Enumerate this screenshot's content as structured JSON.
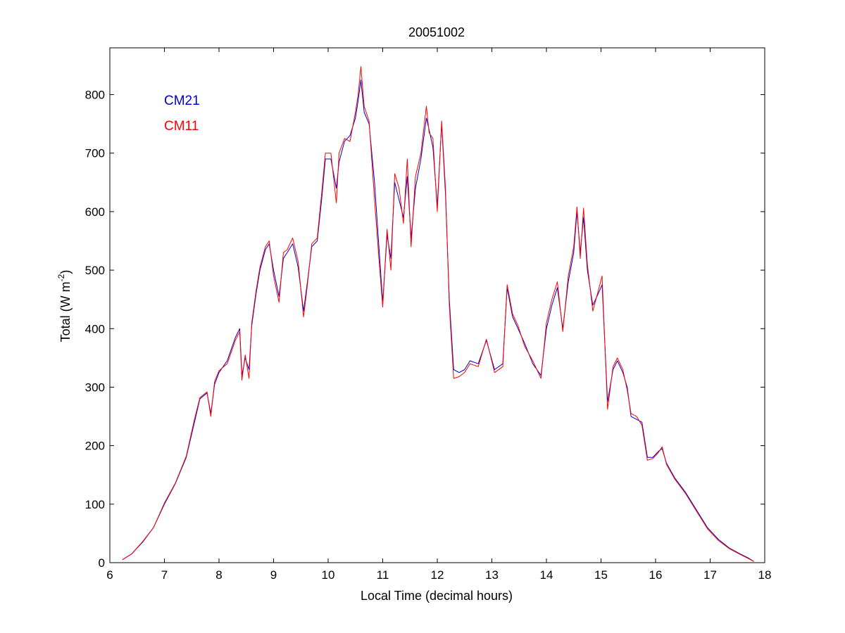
{
  "chart_data": {
    "type": "line",
    "title": "20051002",
    "xlabel": "Local Time (decimal hours)",
    "ylabel_main": "Total (W m",
    "ylabel_sup": "-2",
    "ylabel_close": ")",
    "xlim": [
      6,
      18
    ],
    "ylim": [
      0,
      880
    ],
    "xticks": [
      "6",
      "7",
      "8",
      "9",
      "10",
      "11",
      "12",
      "13",
      "14",
      "15",
      "16",
      "17",
      "18"
    ],
    "yticks": [
      "0",
      "100",
      "200",
      "300",
      "400",
      "500",
      "600",
      "700",
      "800"
    ],
    "grid": false,
    "legend_position": "top-left",
    "series": [
      {
        "name": "CM21",
        "color": "#0000cc",
        "x": [
          6.23,
          6.4,
          6.6,
          6.8,
          7.0,
          7.2,
          7.4,
          7.55,
          7.65,
          7.78,
          7.85,
          7.92,
          8.0,
          8.15,
          8.3,
          8.38,
          8.42,
          8.48,
          8.55,
          8.6,
          8.68,
          8.75,
          8.85,
          8.92,
          9.0,
          9.1,
          9.18,
          9.25,
          9.35,
          9.45,
          9.55,
          9.62,
          9.7,
          9.8,
          9.88,
          9.95,
          10.05,
          10.15,
          10.2,
          10.3,
          10.4,
          10.5,
          10.55,
          10.6,
          10.66,
          10.75,
          10.85,
          10.93,
          11.0,
          11.08,
          11.15,
          11.22,
          11.3,
          11.38,
          11.45,
          11.52,
          11.6,
          11.7,
          11.8,
          11.85,
          11.92,
          12.0,
          12.08,
          12.15,
          12.22,
          12.3,
          12.4,
          12.5,
          12.6,
          12.75,
          12.9,
          13.05,
          13.2,
          13.28,
          13.38,
          13.48,
          13.6,
          13.75,
          13.9,
          14.0,
          14.1,
          14.2,
          14.3,
          14.4,
          14.5,
          14.56,
          14.62,
          14.68,
          14.75,
          14.85,
          14.95,
          15.02,
          15.12,
          15.22,
          15.3,
          15.4,
          15.48,
          15.55,
          15.65,
          15.75,
          15.85,
          15.95,
          16.05,
          16.12,
          16.2,
          16.35,
          16.55,
          16.75,
          16.95,
          17.15,
          17.35,
          17.55,
          17.7,
          17.8
        ],
        "y": [
          5,
          15,
          35,
          60,
          100,
          135,
          180,
          240,
          280,
          290,
          255,
          305,
          325,
          345,
          385,
          400,
          320,
          350,
          330,
          405,
          460,
          500,
          535,
          545,
          500,
          455,
          520,
          530,
          545,
          505,
          430,
          480,
          540,
          550,
          620,
          690,
          690,
          640,
          685,
          720,
          730,
          760,
          790,
          825,
          770,
          750,
          650,
          540,
          445,
          560,
          520,
          650,
          620,
          590,
          660,
          555,
          640,
          690,
          760,
          740,
          710,
          610,
          750,
          630,
          450,
          330,
          325,
          330,
          345,
          340,
          380,
          330,
          340,
          470,
          420,
          400,
          375,
          340,
          320,
          400,
          440,
          470,
          400,
          480,
          530,
          600,
          530,
          590,
          500,
          440,
          460,
          475,
          275,
          330,
          345,
          325,
          300,
          250,
          245,
          240,
          180,
          180,
          190,
          195,
          170,
          145,
          120,
          90,
          60,
          40,
          25,
          15,
          8,
          2
        ]
      },
      {
        "name": "CM11",
        "color": "#ff0000",
        "x": [
          6.23,
          6.4,
          6.6,
          6.8,
          7.0,
          7.2,
          7.4,
          7.55,
          7.65,
          7.78,
          7.85,
          7.92,
          8.0,
          8.15,
          8.3,
          8.38,
          8.42,
          8.48,
          8.55,
          8.6,
          8.68,
          8.75,
          8.85,
          8.92,
          9.0,
          9.1,
          9.18,
          9.25,
          9.35,
          9.45,
          9.55,
          9.62,
          9.7,
          9.8,
          9.88,
          9.95,
          10.05,
          10.15,
          10.2,
          10.3,
          10.4,
          10.5,
          10.55,
          10.6,
          10.66,
          10.75,
          10.85,
          10.93,
          11.0,
          11.08,
          11.15,
          11.22,
          11.3,
          11.38,
          11.45,
          11.52,
          11.6,
          11.7,
          11.8,
          11.85,
          11.92,
          12.0,
          12.08,
          12.15,
          12.22,
          12.3,
          12.4,
          12.5,
          12.6,
          12.75,
          12.9,
          13.05,
          13.2,
          13.28,
          13.38,
          13.48,
          13.6,
          13.75,
          13.9,
          14.0,
          14.1,
          14.2,
          14.3,
          14.4,
          14.5,
          14.56,
          14.62,
          14.68,
          14.75,
          14.85,
          14.95,
          15.02,
          15.12,
          15.22,
          15.3,
          15.4,
          15.48,
          15.55,
          15.65,
          15.75,
          15.85,
          15.95,
          16.05,
          16.12,
          16.2,
          16.35,
          16.55,
          16.75,
          16.95,
          17.15,
          17.35,
          17.55,
          17.7,
          17.8
        ],
        "y": [
          5,
          15,
          36,
          60,
          102,
          136,
          182,
          245,
          282,
          292,
          250,
          310,
          328,
          340,
          380,
          395,
          312,
          355,
          315,
          410,
          465,
          505,
          540,
          550,
          490,
          445,
          530,
          535,
          555,
          515,
          420,
          475,
          545,
          555,
          630,
          700,
          700,
          615,
          700,
          725,
          720,
          770,
          800,
          848,
          780,
          755,
          620,
          520,
          437,
          570,
          500,
          665,
          640,
          580,
          690,
          540,
          660,
          700,
          780,
          735,
          725,
          600,
          755,
          640,
          440,
          315,
          318,
          325,
          340,
          335,
          382,
          325,
          335,
          475,
          425,
          405,
          370,
          345,
          315,
          410,
          450,
          480,
          395,
          490,
          540,
          608,
          520,
          606,
          510,
          430,
          465,
          490,
          262,
          335,
          350,
          330,
          295,
          255,
          250,
          235,
          175,
          178,
          188,
          198,
          168,
          143,
          118,
          88,
          58,
          38,
          24,
          14,
          7,
          2
        ]
      }
    ]
  }
}
